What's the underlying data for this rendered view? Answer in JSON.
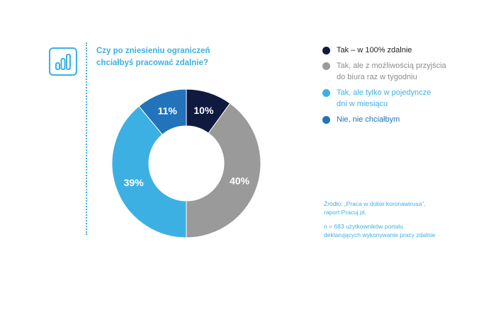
{
  "question": {
    "lines": [
      "Czy po zniesieniu ograniczeń",
      "chciałbyś pracować zdalnie?"
    ]
  },
  "icon": "bar-chart-icon",
  "colors": {
    "accent": "#3db0e3",
    "navy": "#0f1a3e",
    "gray": "#9a9a9a",
    "light_blue": "#3db0e3",
    "mid_blue": "#2273b9"
  },
  "chart_data": {
    "type": "pie",
    "subtype": "donut",
    "categories": [
      "Tak – w 100% zdalnie",
      "Tak, ale z możliwością przyjścia do biura raz w tygodniu",
      "Tak, ale tylko w pojedyncze dni w miesiącu",
      "Nie, nie chciałbym"
    ],
    "values": [
      10,
      40,
      39,
      11
    ],
    "value_labels": [
      "10%",
      "40%",
      "39%",
      "11%"
    ],
    "colors": [
      "#0f1a3e",
      "#9a9a9a",
      "#3db0e3",
      "#2273b9"
    ],
    "legend_placement": "right"
  },
  "legend": [
    {
      "lines": [
        "Tak – w 100% zdalnie"
      ],
      "color": "#0f1a3e",
      "text_color": "#1e1e1e"
    },
    {
      "lines": [
        "Tak, ale z możliwością przyjścia",
        "do biura raz w tygodniu"
      ],
      "color": "#9a9a9a",
      "text_color": "#8c8c8c"
    },
    {
      "lines": [
        "Tak, ale tylko w pojedyncze",
        "dni w miesiącu"
      ],
      "color": "#3db0e3",
      "text_color": "#3db0e3"
    },
    {
      "lines": [
        "Nie, nie chciałbym"
      ],
      "color": "#2273b9",
      "text_color": "#2273b9"
    }
  ],
  "source": {
    "lines": [
      "Źródło: „Praca w dobie koronawirusa”,",
      "raport Pracuj.pl,"
    ],
    "note_lines": [
      "n = 683 użytkowników portalu",
      "deklarujących wykonywanie pracy zdalnie"
    ]
  }
}
